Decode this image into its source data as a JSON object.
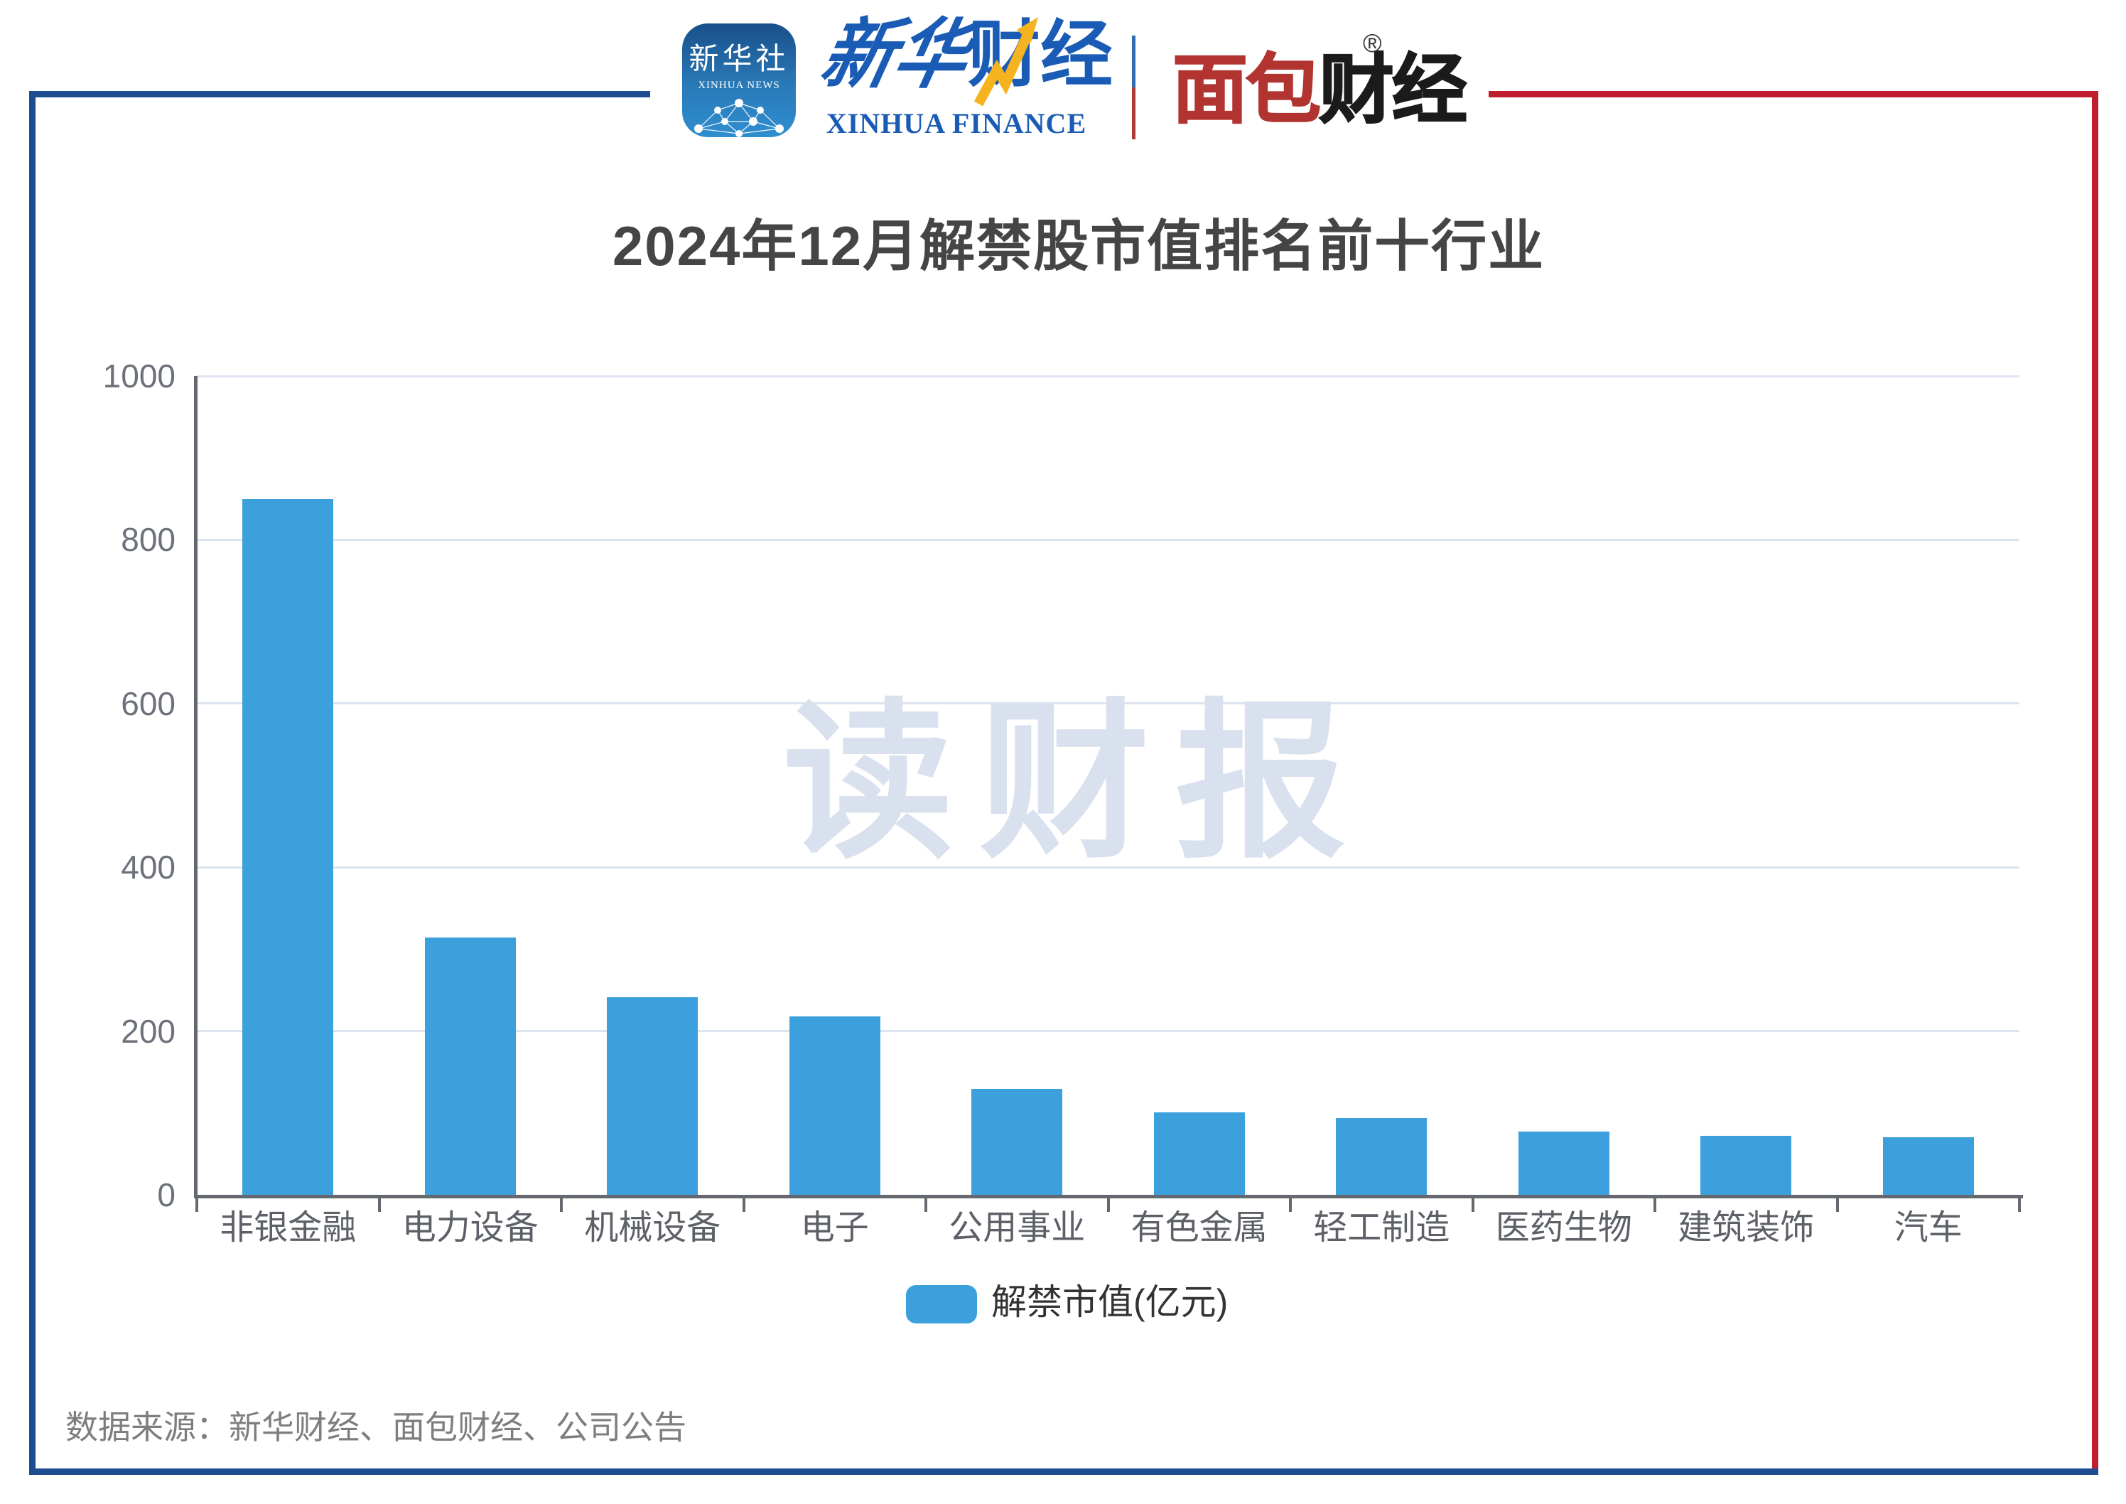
{
  "header": {
    "xinhua_news_icon": {
      "cn": "新华社",
      "en": "XINHUA NEWS"
    },
    "xinhua_finance": {
      "cn_part1": "新华",
      "cn_part2": "财经",
      "en": "XINHUA FINANCE"
    },
    "bread_finance": {
      "part1": "面包",
      "part2": "财经",
      "reg_mark": "®"
    }
  },
  "chart_data": {
    "type": "bar",
    "title": "2024年12月解禁股市值排名前十行业",
    "categories": [
      "非银金融",
      "电力设备",
      "机械设备",
      "电子",
      "公用事业",
      "有色金属",
      "轻工制造",
      "医药生物",
      "建筑装饰",
      "汽车"
    ],
    "values": [
      850,
      314,
      241,
      218,
      129,
      101,
      94,
      77,
      72,
      70
    ],
    "series": [
      {
        "name": "解禁市值(亿元)",
        "values": [
          850,
          314,
          241,
          218,
          129,
          101,
          94,
          77,
          72,
          70
        ]
      }
    ],
    "ylabel": "",
    "xlabel": "",
    "ylim": [
      0,
      1000
    ],
    "ytick_interval": 200,
    "yticks": [
      "0",
      "200",
      "400",
      "600",
      "800",
      "1000"
    ],
    "grid": true,
    "legend": [
      "解禁市值(亿元)"
    ],
    "legend_position": "bottom",
    "bar_color": "#3BA0DB",
    "watermark": "读财报"
  },
  "footer": {
    "source": "数据来源：新华财经、面包财经、公司公告"
  }
}
